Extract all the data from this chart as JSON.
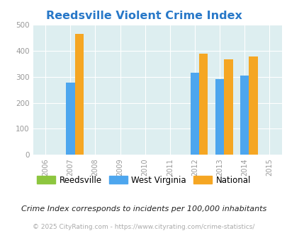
{
  "title": "Reedsville Violent Crime Index",
  "title_color": "#2878c8",
  "years": [
    2006,
    2007,
    2008,
    2009,
    2010,
    2011,
    2012,
    2013,
    2014,
    2015
  ],
  "data_years": [
    2007,
    2012,
    2013,
    2014
  ],
  "reedsville": [
    0,
    0,
    0,
    0
  ],
  "west_virginia": [
    278,
    315,
    292,
    303
  ],
  "national": [
    465,
    387,
    366,
    378
  ],
  "reedsville_color": "#8dc63f",
  "wv_color": "#4da6ee",
  "national_color": "#f5a623",
  "bg_color": "#ddeef0",
  "ylim": [
    0,
    500
  ],
  "yticks": [
    0,
    100,
    200,
    300,
    400,
    500
  ],
  "legend_labels": [
    "Reedsville",
    "West Virginia",
    "National"
  ],
  "footnote1": "Crime Index corresponds to incidents per 100,000 inhabitants",
  "footnote2": "© 2025 CityRating.com - https://www.cityrating.com/crime-statistics/",
  "bar_width": 0.35,
  "fig_width": 4.06,
  "fig_height": 3.3,
  "dpi": 100
}
